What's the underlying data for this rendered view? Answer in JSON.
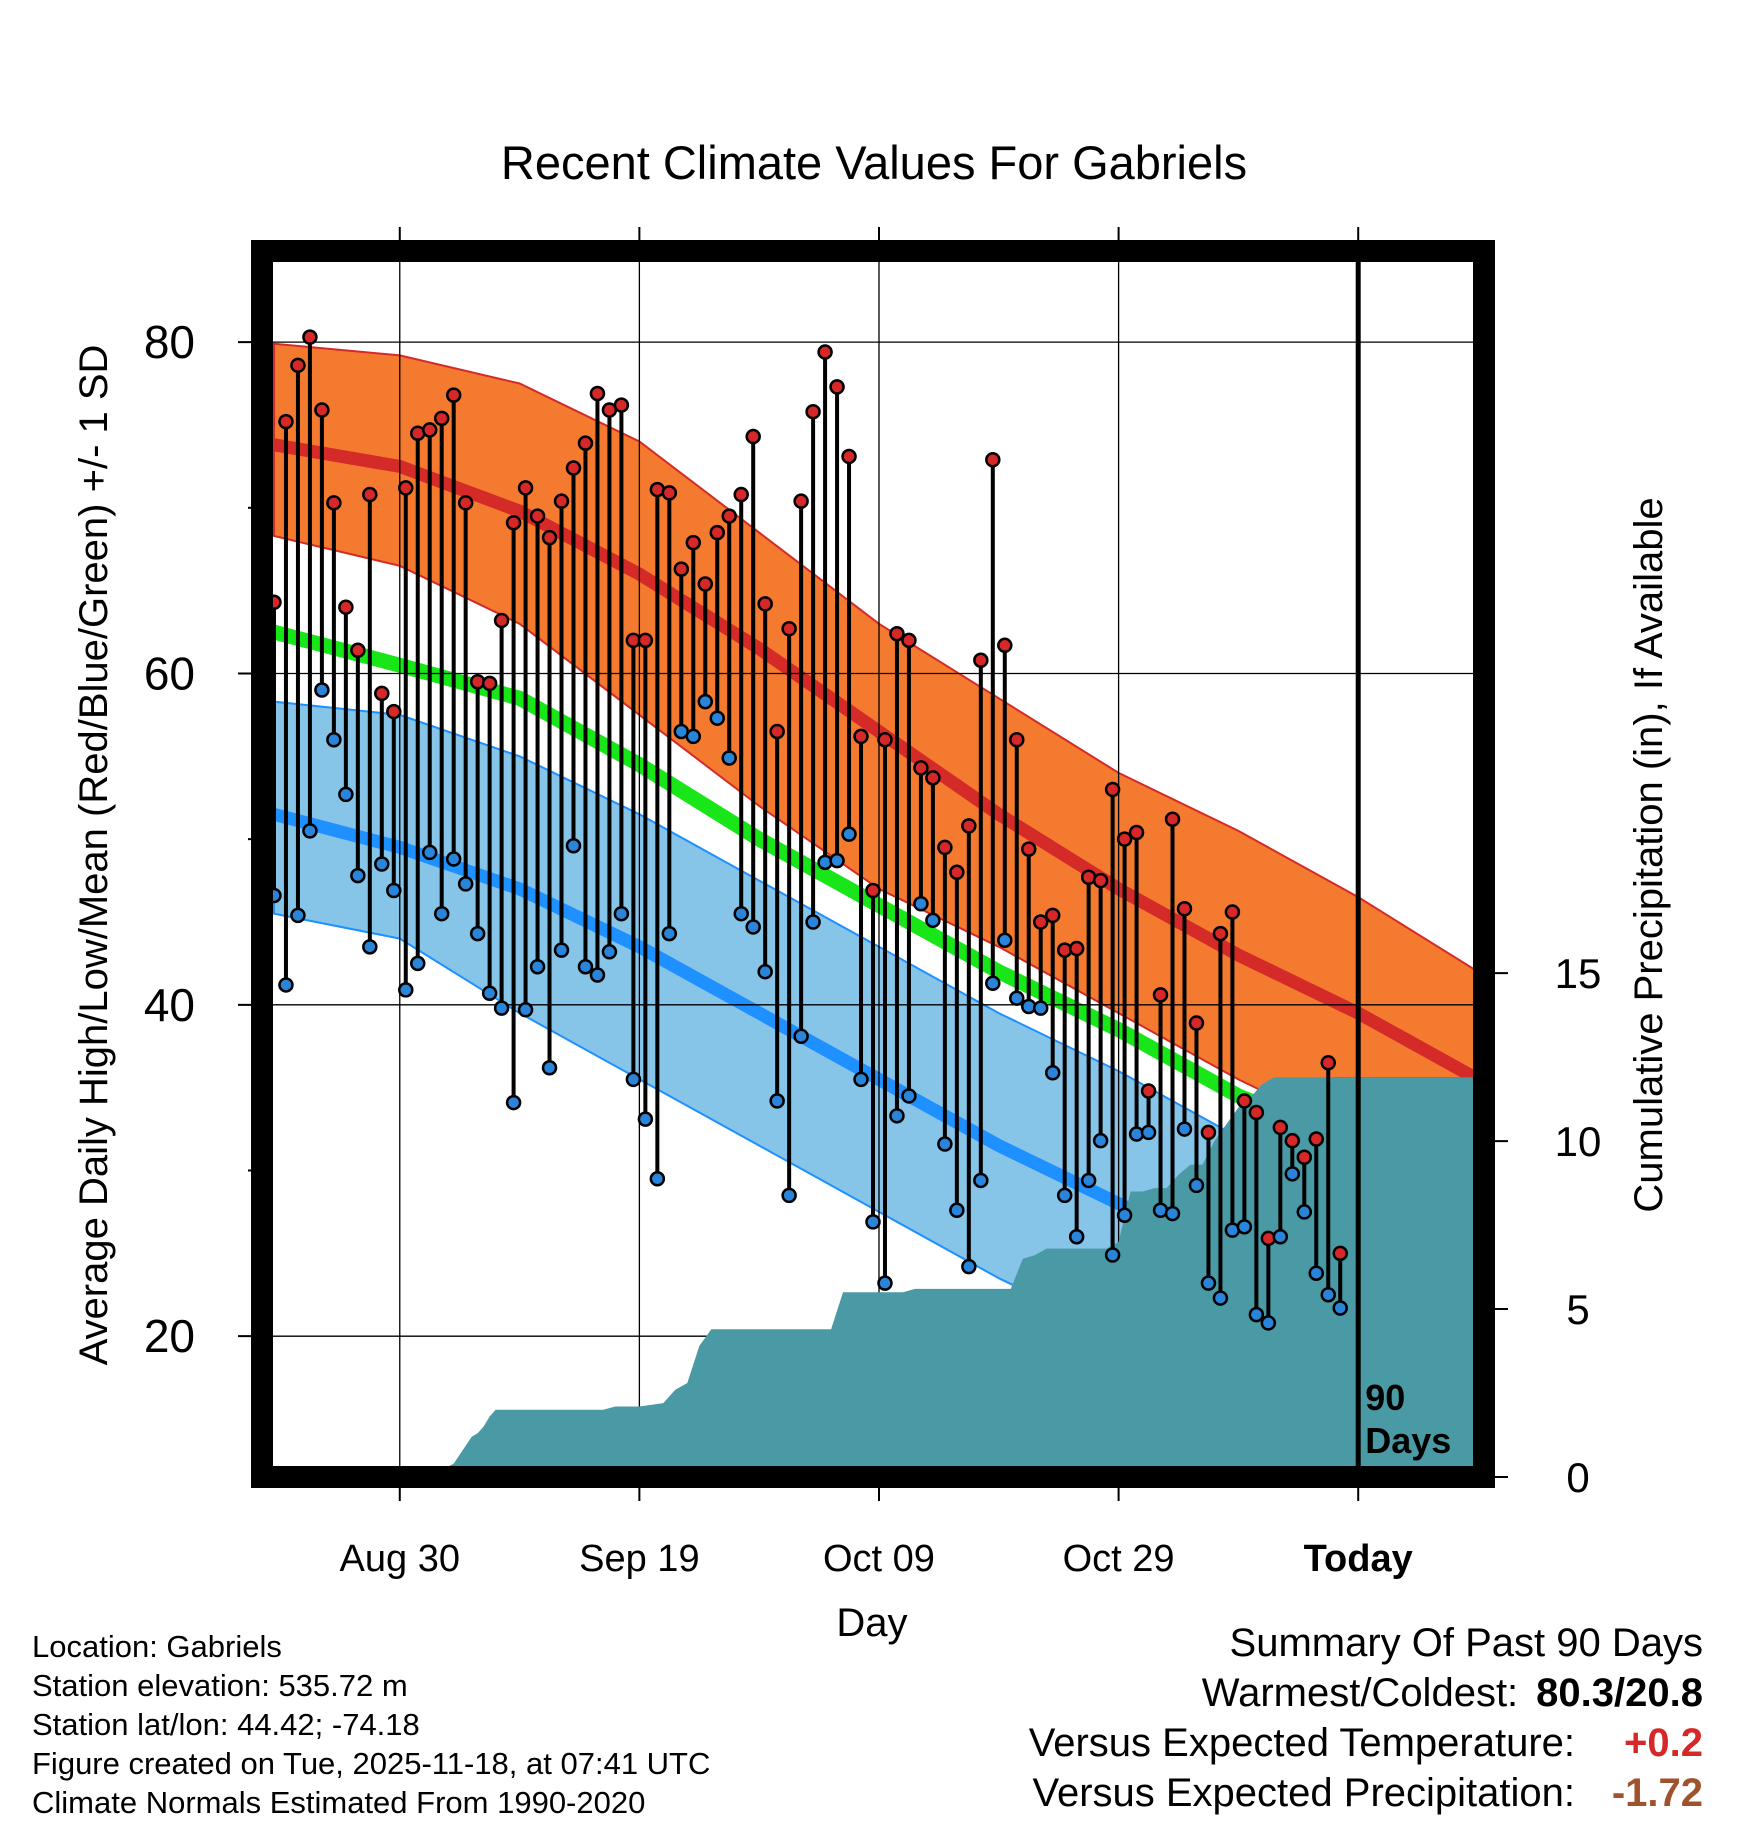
{
  "chart_data": {
    "type": "line",
    "title": "Recent Climate Values For Gabriels",
    "xlabel": "Day",
    "ylabel": "Average Daily High/Low/Mean (Red/Blue/Green) +/- 1 SD",
    "y2label": "Cumulative Precipitation (in), If Available",
    "xlim": [
      -11.5,
      90.5
    ],
    "ylim": [
      11.5,
      85.5
    ],
    "y2lim": [
      0,
      36.5
    ],
    "x_ticks": [
      {
        "x": 0,
        "label": "Aug 30"
      },
      {
        "x": 20,
        "label": "Sep 19"
      },
      {
        "x": 40,
        "label": "Oct 09"
      },
      {
        "x": 60,
        "label": "Oct 29"
      },
      {
        "x": 80,
        "label": "Today"
      }
    ],
    "y_ticks": [
      20,
      40,
      60,
      80
    ],
    "y_minor_ticks": [
      30,
      50,
      70
    ],
    "y2_ticks": [
      0,
      5,
      10,
      15
    ],
    "today_x": 80,
    "today_label": [
      "90",
      "Days"
    ],
    "normals": {
      "x": [
        -10.5,
        0,
        10,
        20,
        30,
        40,
        50,
        60,
        70,
        80,
        90
      ],
      "high_mean": [
        73.8,
        72.5,
        69.8,
        66.0,
        61.5,
        56.5,
        51.5,
        47.0,
        43.0,
        39.5,
        35.5
      ],
      "high_upper": [
        79.9,
        79.2,
        77.5,
        74.0,
        68.5,
        63.0,
        58.5,
        54.0,
        50.5,
        46.5,
        42.0
      ],
      "high_lower": [
        68.3,
        66.5,
        63.0,
        57.5,
        52.0,
        47.0,
        43.5,
        39.5,
        35.5,
        32.0,
        29.0
      ],
      "mean": [
        62.5,
        60.5,
        58.5,
        54.5,
        50.0,
        46.0,
        42.0,
        38.5,
        34.5,
        31.5,
        28.5
      ],
      "low_mean": [
        51.5,
        49.5,
        47.0,
        43.5,
        39.5,
        35.5,
        31.5,
        28.0,
        24.5,
        21.5,
        19.0
      ],
      "low_upper": [
        58.3,
        57.5,
        55.0,
        51.5,
        47.5,
        43.5,
        39.5,
        36.0,
        32.0,
        29.0,
        26.0
      ],
      "low_lower": [
        45.5,
        44.0,
        39.5,
        35.5,
        31.5,
        27.5,
        23.5,
        20.0,
        17.0,
        14.0,
        12.0
      ]
    },
    "series": [
      {
        "name": "Daily High",
        "color": "#d62828",
        "values": [
          64.3,
          75.2,
          78.6,
          80.3,
          75.9,
          70.3,
          64.0,
          61.4,
          70.8,
          58.8,
          57.7,
          71.2,
          74.5,
          74.7,
          75.4,
          76.8,
          70.3,
          59.5,
          59.4,
          63.2,
          69.1,
          71.2,
          69.5,
          68.2,
          70.4,
          72.4,
          73.9,
          76.9,
          75.9,
          76.2,
          62.0,
          62.0,
          71.1,
          70.9,
          66.3,
          67.9,
          65.4,
          68.5,
          69.5,
          70.8,
          74.3,
          64.2,
          56.5,
          62.7,
          70.4,
          75.8,
          79.4,
          77.3,
          73.1,
          56.2,
          46.9,
          56.0,
          62.4,
          62.0,
          54.3,
          53.7,
          49.5,
          48.0,
          50.8,
          60.8,
          72.9,
          61.7,
          56.0,
          49.4,
          45.0,
          45.4,
          43.3,
          43.4,
          47.7,
          47.5,
          53.0,
          50.0,
          50.4,
          34.8,
          40.6,
          51.2,
          45.8,
          38.9,
          32.3,
          44.3,
          45.6,
          34.2,
          33.5,
          25.9,
          32.6,
          31.8,
          30.8,
          31.9,
          36.5,
          25.0
        ]
      },
      {
        "name": "Daily Low",
        "color": "#2a84d9",
        "values": [
          46.6,
          41.2,
          45.4,
          50.5,
          59.0,
          56.0,
          52.7,
          47.8,
          43.5,
          48.5,
          46.9,
          40.9,
          42.5,
          49.2,
          45.5,
          48.8,
          47.3,
          44.3,
          40.7,
          39.8,
          34.1,
          39.7,
          42.3,
          36.2,
          43.3,
          49.6,
          42.3,
          41.8,
          43.2,
          45.5,
          35.5,
          33.1,
          29.5,
          44.3,
          56.5,
          56.2,
          58.3,
          57.3,
          54.9,
          45.5,
          44.7,
          42.0,
          34.2,
          28.5,
          38.1,
          45.0,
          48.6,
          48.7,
          50.3,
          35.5,
          26.9,
          23.2,
          33.3,
          34.5,
          46.1,
          45.1,
          31.6,
          27.6,
          24.2,
          29.4,
          41.3,
          43.9,
          40.4,
          39.9,
          39.8,
          35.9,
          28.5,
          26.0,
          29.4,
          31.8,
          24.9,
          27.3,
          32.2,
          32.3,
          27.6,
          27.4,
          32.5,
          29.1,
          23.2,
          22.3,
          26.4,
          26.6,
          21.3,
          20.8,
          26.0,
          29.8,
          27.5,
          23.8,
          22.5,
          21.7
        ]
      },
      {
        "name": "Cumulative Precipitation",
        "color": "#4a9aa5",
        "x": [
          -2,
          0,
          4,
          4.5,
          6,
          6.5,
          7,
          7.5,
          8,
          12,
          17,
          18,
          20,
          22,
          23,
          24,
          25,
          26,
          27,
          28,
          29,
          30,
          31,
          32,
          33,
          34,
          35,
          36,
          37,
          38,
          39,
          40,
          41,
          42,
          43,
          44,
          45,
          46,
          47,
          48,
          49,
          50,
          51,
          52,
          53,
          54,
          55,
          56,
          57,
          58,
          59,
          60,
          61,
          62,
          63,
          64,
          65,
          66,
          67,
          68,
          69,
          70,
          71,
          72,
          73,
          74,
          75,
          76,
          77,
          78,
          79,
          80,
          90.5
        ],
        "values": [
          0,
          0.3,
          0.3,
          0.4,
          1.2,
          1.3,
          1.5,
          1.8,
          2.0,
          2.0,
          2.0,
          2.1,
          2.1,
          2.2,
          2.6,
          2.8,
          3.9,
          4.4,
          4.4,
          4.4,
          4.4,
          4.4,
          4.4,
          4.4,
          4.4,
          4.4,
          4.4,
          4.4,
          5.5,
          5.5,
          5.5,
          5.5,
          5.5,
          5.5,
          5.6,
          5.6,
          5.6,
          5.6,
          5.6,
          5.6,
          5.6,
          5.6,
          5.6,
          6.5,
          6.6,
          6.8,
          6.8,
          6.8,
          6.8,
          6.8,
          6.8,
          7.0,
          8.5,
          8.5,
          8.6,
          8.6,
          9.0,
          9.3,
          9.3,
          10.0,
          10.5,
          11.0,
          11.3,
          11.7,
          11.9,
          11.9,
          11.9,
          11.9,
          11.9,
          11.9,
          11.9,
          11.9,
          11.9
        ]
      }
    ]
  },
  "info": {
    "location": "Location: Gabriels",
    "elevation": "Station elevation: 535.72 m",
    "latlon": "Station lat/lon: 44.42; -74.18",
    "created": "Figure created on Tue, 2025-11-18, at 07:41 UTC",
    "normals": "Climate Normals Estimated From 1990-2020"
  },
  "summary": {
    "title": "Summary Of Past 90 Days",
    "warmest_label": "Warmest/Coldest:",
    "warmest_value": "80.3/20.8",
    "temp_label": "Versus Expected Temperature:",
    "temp_value": "+0.2",
    "temp_color": "#d62828",
    "precip_label": "Versus Expected Precipitation:",
    "precip_value": "-1.72",
    "precip_color": "#a0522d"
  },
  "colors": {
    "high_band": "#f47a30",
    "high_line": "#d42a28",
    "mean_line": "#19e619",
    "low_band": "#86c4e8",
    "low_line": "#1e90ff",
    "precip_fill": "#4a9aa5",
    "deficit_fill": "#8b0f0f"
  }
}
